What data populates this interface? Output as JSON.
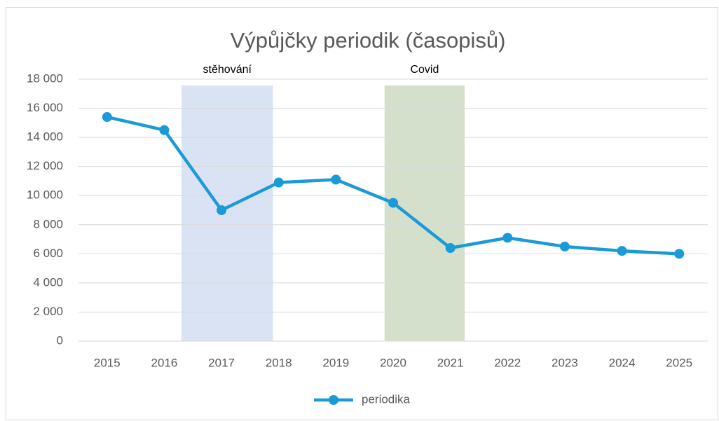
{
  "chart_data": {
    "type": "line",
    "title": "Výpůjčky periodik (časopisů)",
    "x": [
      2015,
      2016,
      2017,
      2018,
      2019,
      2020,
      2021,
      2022,
      2023,
      2024,
      2025
    ],
    "xlim": [
      2014.5,
      2025.5
    ],
    "xticks": [
      2015,
      2016,
      2017,
      2018,
      2019,
      2020,
      2021,
      2022,
      2023,
      2024,
      2025
    ],
    "series": [
      {
        "name": "periodika",
        "color": "#1a9ad6",
        "values": [
          15400,
          14500,
          9000,
          10900,
          11100,
          9500,
          6400,
          7100,
          6500,
          6200,
          6000
        ]
      }
    ],
    "ylim": [
      0,
      18000
    ],
    "yticks": [
      0,
      {
        "value": 2000,
        "label": "2 000"
      },
      {
        "value": 4000,
        "label": "4 000"
      },
      {
        "value": 6000,
        "label": "6 000"
      },
      {
        "value": 8000,
        "label": "8 000"
      },
      {
        "value": 10000,
        "label": "10 000"
      },
      {
        "value": 12000,
        "label": "12 000"
      },
      {
        "value": 14000,
        "label": "14 000"
      },
      {
        "value": 16000,
        "label": "16 000"
      },
      {
        "value": 18000,
        "label": "18 000"
      }
    ],
    "bands": [
      {
        "label": "stěhování",
        "from": 2016.3,
        "to": 2017.9,
        "color": "#dae3f3"
      },
      {
        "label": "Covid",
        "from": 2019.85,
        "to": 2021.25,
        "color": "#d5e0cc"
      }
    ],
    "grid": true,
    "legend": "bottom"
  }
}
